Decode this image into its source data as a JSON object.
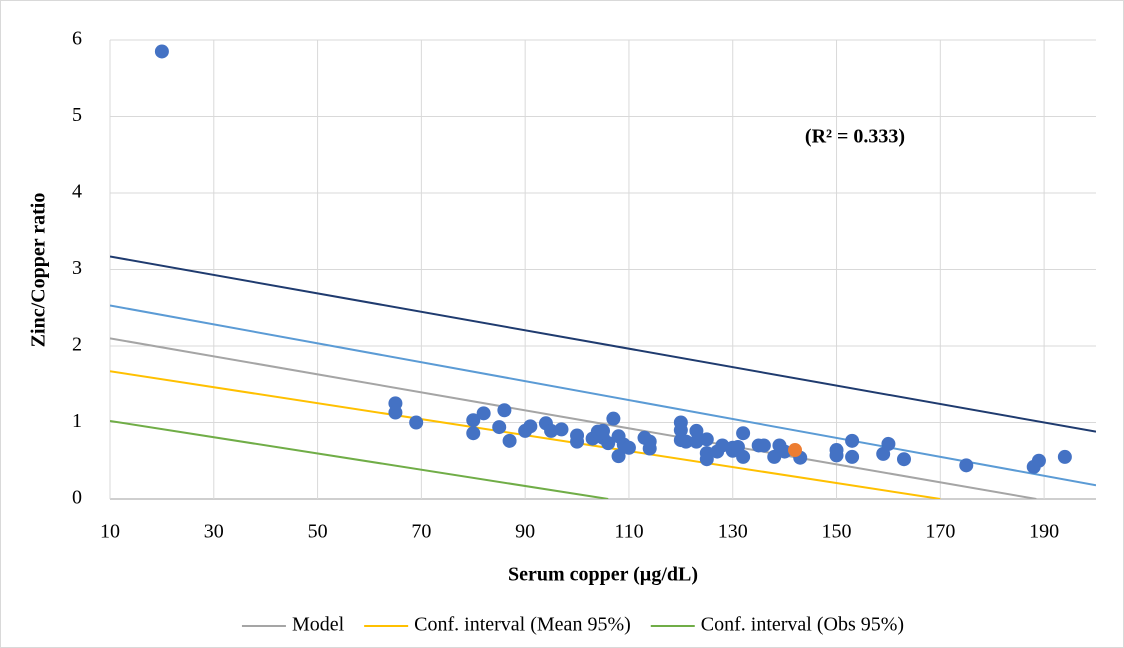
{
  "chart_data": {
    "type": "scatter",
    "x_label": "Serum copper (µg/dL)",
    "y_label": "Zinc/Copper ratio",
    "annotation": "(R² = 0.333)",
    "xlim": [
      10,
      200
    ],
    "xticks": [
      10,
      30,
      50,
      70,
      90,
      110,
      130,
      150,
      170,
      190
    ],
    "ylim": [
      0,
      6
    ],
    "yticks": [
      0,
      1,
      2,
      3,
      4,
      5,
      6
    ],
    "grid": true,
    "legend": "bottom",
    "series": [
      {
        "type": "line",
        "color": "#1f3b6f",
        "x": [
          10,
          200
        ],
        "values": [
          3.17,
          0.88
        ]
      },
      {
        "type": "line",
        "color": "#5b9bd5",
        "x": [
          10,
          200
        ],
        "values": [
          2.53,
          0.18
        ]
      },
      {
        "type": "line",
        "name": "Model",
        "color": "#a5a5a5",
        "x": [
          10,
          188.5
        ],
        "values": [
          2.1,
          0
        ]
      },
      {
        "type": "line",
        "name": "Conf. interval (Mean 95%)",
        "color": "#ffc000",
        "x": [
          10,
          170
        ],
        "values": [
          1.67,
          0
        ]
      },
      {
        "type": "line",
        "name": "Conf. interval (Obs 95%)",
        "color": "#70ad47",
        "x": [
          10,
          106
        ],
        "values": [
          1.02,
          0
        ]
      },
      {
        "type": "scatter",
        "color": "#4472c4",
        "x": [
          20,
          65,
          65,
          69,
          80,
          80,
          82,
          85,
          86,
          87,
          90,
          91,
          94,
          95,
          97,
          100,
          100,
          103,
          104,
          105,
          105,
          106,
          107,
          108,
          108,
          109,
          110,
          113,
          114,
          114,
          120,
          120,
          120,
          121,
          123,
          123,
          125,
          125,
          125,
          127,
          128,
          130,
          130,
          131,
          132,
          132,
          135,
          136,
          138,
          139,
          140,
          143,
          150,
          150,
          153,
          153,
          159,
          160,
          163,
          175,
          188,
          189,
          194
        ],
        "values": [
          5.85,
          1.25,
          1.13,
          1.0,
          1.03,
          0.86,
          1.12,
          0.94,
          1.16,
          0.76,
          0.89,
          0.95,
          0.99,
          0.89,
          0.91,
          0.83,
          0.75,
          0.79,
          0.88,
          0.8,
          0.89,
          0.73,
          1.05,
          0.82,
          0.56,
          0.71,
          0.67,
          0.8,
          0.75,
          0.66,
          1.0,
          0.9,
          0.77,
          0.75,
          0.89,
          0.75,
          0.78,
          0.6,
          0.52,
          0.62,
          0.7,
          0.67,
          0.63,
          0.68,
          0.86,
          0.55,
          0.7,
          0.7,
          0.55,
          0.7,
          0.62,
          0.54,
          0.64,
          0.57,
          0.76,
          0.55,
          0.59,
          0.72,
          0.52,
          0.44,
          0.42,
          0.5,
          0.55
        ]
      },
      {
        "type": "scatter",
        "color": "#ed7d31",
        "x": [
          142
        ],
        "values": [
          0.64
        ]
      }
    ]
  }
}
